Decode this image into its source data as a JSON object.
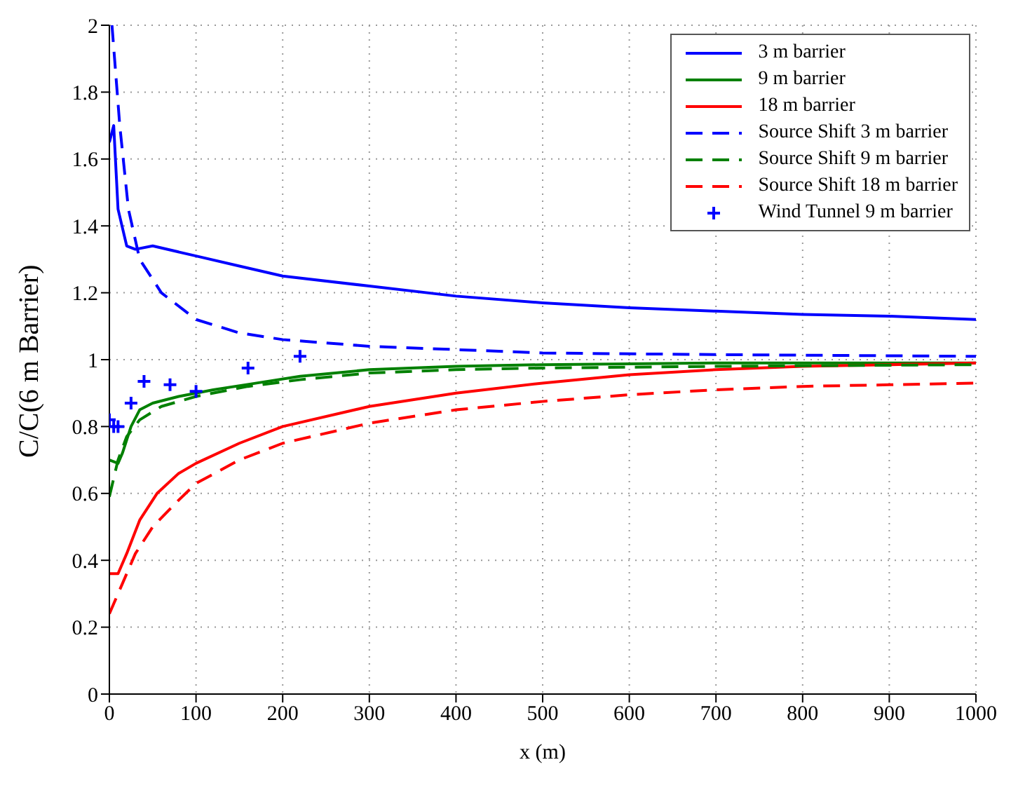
{
  "chart_data": {
    "type": "line",
    "xlabel": "x (m)",
    "ylabel": "C/C(6 m Barrier)",
    "xlim": [
      0,
      1000
    ],
    "xticks": [
      0,
      100,
      200,
      300,
      400,
      500,
      600,
      700,
      800,
      900,
      1000
    ],
    "ylim": [
      0,
      2
    ],
    "yticks": [
      0,
      0.2,
      0.4,
      0.6,
      0.8,
      1,
      1.2,
      1.4,
      1.6,
      1.8,
      2
    ],
    "grid": true,
    "legend": "top right",
    "series": [
      {
        "name": "3 m barrier",
        "color": "#0000ff",
        "line_style": "solid",
        "marker": "none",
        "x": [
          0,
          5,
          10,
          20,
          30,
          50,
          100,
          150,
          200,
          300,
          400,
          500,
          600,
          700,
          800,
          900,
          1000
        ],
        "values": [
          1.65,
          1.7,
          1.45,
          1.34,
          1.33,
          1.34,
          1.31,
          1.28,
          1.25,
          1.22,
          1.19,
          1.17,
          1.155,
          1.145,
          1.135,
          1.13,
          1.12
        ]
      },
      {
        "name": "9 m barrier",
        "color": "#008000",
        "line_style": "solid",
        "marker": "none",
        "x": [
          0,
          10,
          15,
          25,
          35,
          50,
          80,
          120,
          170,
          220,
          300,
          400,
          500,
          700,
          1000
        ],
        "values": [
          0.7,
          0.69,
          0.72,
          0.8,
          0.85,
          0.87,
          0.89,
          0.91,
          0.93,
          0.95,
          0.97,
          0.98,
          0.985,
          0.99,
          0.99
        ]
      },
      {
        "name": "18 m barrier",
        "color": "#ff0000",
        "line_style": "solid",
        "marker": "none",
        "x": [
          0,
          10,
          20,
          35,
          55,
          80,
          100,
          150,
          200,
          300,
          400,
          500,
          600,
          700,
          800,
          900,
          1000
        ],
        "values": [
          0.36,
          0.36,
          0.42,
          0.52,
          0.6,
          0.66,
          0.69,
          0.75,
          0.8,
          0.86,
          0.9,
          0.93,
          0.955,
          0.97,
          0.98,
          0.985,
          0.99
        ]
      },
      {
        "name": "Source Shift 3 m barrier",
        "color": "#0000ff",
        "line_style": "dashed",
        "marker": "none",
        "x": [
          3,
          12,
          22,
          35,
          60,
          100,
          150,
          200,
          300,
          400,
          500,
          700,
          1000
        ],
        "values": [
          2,
          1.7,
          1.45,
          1.3,
          1.2,
          1.12,
          1.08,
          1.06,
          1.04,
          1.03,
          1.02,
          1.015,
          1.01
        ]
      },
      {
        "name": "Source Shift 9 m barrier",
        "color": "#008000",
        "line_style": "dashed",
        "marker": "none",
        "x": [
          0,
          10,
          20,
          35,
          60,
          100,
          160,
          220,
          300,
          400,
          500,
          700,
          1000
        ],
        "values": [
          0.59,
          0.7,
          0.77,
          0.82,
          0.86,
          0.89,
          0.92,
          0.94,
          0.96,
          0.97,
          0.975,
          0.98,
          0.985
        ]
      },
      {
        "name": "Source Shift 18 m barrier",
        "color": "#ff0000",
        "line_style": "dashed",
        "marker": "none",
        "x": [
          0,
          15,
          30,
          50,
          80,
          100,
          150,
          200,
          300,
          400,
          500,
          600,
          700,
          800,
          900,
          1000
        ],
        "values": [
          0.24,
          0.33,
          0.42,
          0.5,
          0.58,
          0.63,
          0.7,
          0.75,
          0.81,
          0.85,
          0.875,
          0.895,
          0.91,
          0.92,
          0.925,
          0.93
        ]
      },
      {
        "name": "Wind Tunnel 9 m barrier",
        "type": "scatter",
        "color": "#0000ff",
        "marker": "cross",
        "x": [
          0,
          5,
          10,
          25,
          40,
          70,
          100,
          160,
          220
        ],
        "values": [
          0.82,
          0.8,
          0.8,
          0.87,
          0.935,
          0.925,
          0.905,
          0.975,
          1.01
        ]
      }
    ]
  }
}
